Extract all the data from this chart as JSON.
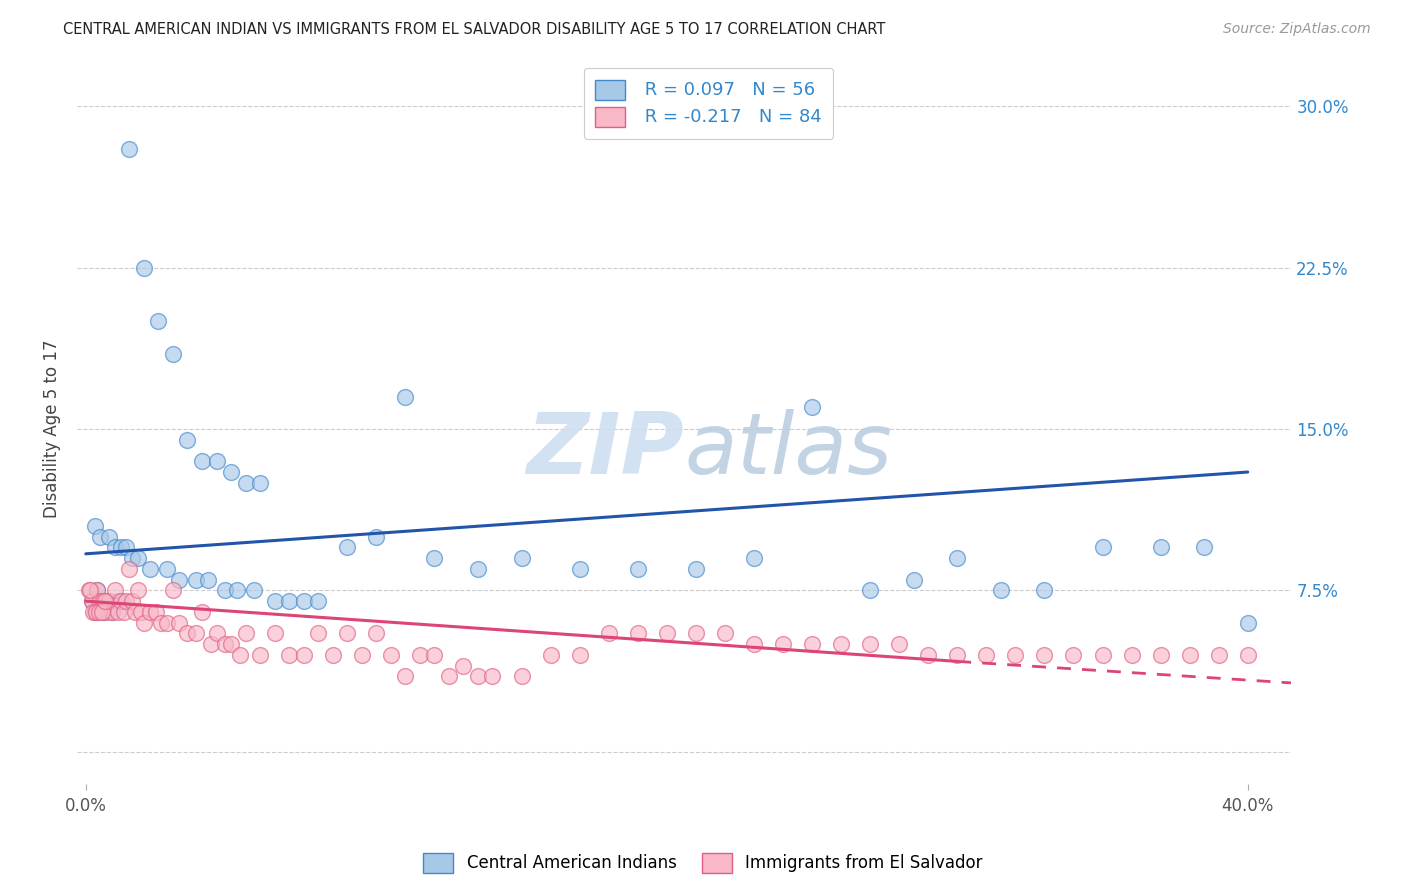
{
  "title": "CENTRAL AMERICAN INDIAN VS IMMIGRANTS FROM EL SALVADOR DISABILITY AGE 5 TO 17 CORRELATION CHART",
  "source": "Source: ZipAtlas.com",
  "ylabel": "Disability Age 5 to 17",
  "legend_label1": "Central American Indians",
  "legend_label2": "Immigrants from El Salvador",
  "legend_R1": "R = 0.097",
  "legend_N1": "N = 56",
  "legend_R2": "R = -0.217",
  "legend_N2": "N = 84",
  "color_blue_fill": "#a8c8e8",
  "color_blue_edge": "#4488cc",
  "color_pink_fill": "#f8b8c8",
  "color_pink_edge": "#e06080",
  "color_blue_line": "#2255aa",
  "color_pink_line": "#dd4477",
  "color_legend_text": "#3388cc",
  "watermark_color": "#ccddf0",
  "blue_scatter_x": [
    1.5,
    2.0,
    2.5,
    3.0,
    3.5,
    4.0,
    4.5,
    5.0,
    5.5,
    6.0,
    0.3,
    0.5,
    0.8,
    1.0,
    1.2,
    1.4,
    1.6,
    1.8,
    2.2,
    2.8,
    3.2,
    3.8,
    4.2,
    4.8,
    5.2,
    5.8,
    6.5,
    7.0,
    7.5,
    8.0,
    9.0,
    10.0,
    11.0,
    12.0,
    13.5,
    15.0,
    17.0,
    19.0,
    21.0,
    23.0,
    25.0,
    27.0,
    28.5,
    30.0,
    31.5,
    33.0,
    35.0,
    37.0,
    38.5,
    40.0,
    0.2,
    0.4,
    0.6,
    0.7,
    0.9,
    1.1
  ],
  "blue_scatter_y": [
    28.0,
    22.5,
    20.0,
    18.5,
    14.5,
    13.5,
    13.5,
    13.0,
    12.5,
    12.5,
    10.5,
    10.0,
    10.0,
    9.5,
    9.5,
    9.5,
    9.0,
    9.0,
    8.5,
    8.5,
    8.0,
    8.0,
    8.0,
    7.5,
    7.5,
    7.5,
    7.0,
    7.0,
    7.0,
    7.0,
    9.5,
    10.0,
    16.5,
    9.0,
    8.5,
    9.0,
    8.5,
    8.5,
    8.5,
    9.0,
    16.0,
    7.5,
    8.0,
    9.0,
    7.5,
    7.5,
    9.5,
    9.5,
    9.5,
    6.0,
    7.0,
    7.5,
    6.5,
    7.0,
    6.5,
    7.0
  ],
  "pink_scatter_x": [
    0.1,
    0.2,
    0.3,
    0.4,
    0.5,
    0.6,
    0.7,
    0.8,
    0.9,
    1.0,
    1.1,
    1.2,
    1.3,
    1.4,
    1.5,
    1.6,
    1.7,
    1.8,
    1.9,
    2.0,
    2.2,
    2.4,
    2.6,
    2.8,
    3.0,
    3.2,
    3.5,
    3.8,
    4.0,
    4.3,
    4.5,
    4.8,
    5.0,
    5.3,
    5.5,
    6.0,
    6.5,
    7.0,
    7.5,
    8.0,
    8.5,
    9.0,
    9.5,
    10.0,
    10.5,
    11.0,
    11.5,
    12.0,
    12.5,
    13.0,
    13.5,
    14.0,
    15.0,
    16.0,
    17.0,
    18.0,
    19.0,
    20.0,
    21.0,
    22.0,
    23.0,
    24.0,
    25.0,
    26.0,
    27.0,
    28.0,
    29.0,
    30.0,
    31.0,
    32.0,
    33.0,
    34.0,
    35.0,
    36.0,
    37.0,
    38.0,
    39.0,
    40.0,
    0.15,
    0.25,
    0.35,
    0.45,
    0.55,
    0.65
  ],
  "pink_scatter_y": [
    7.5,
    7.0,
    6.5,
    7.5,
    7.0,
    7.0,
    6.5,
    7.0,
    6.5,
    7.5,
    6.5,
    7.0,
    6.5,
    7.0,
    8.5,
    7.0,
    6.5,
    7.5,
    6.5,
    6.0,
    6.5,
    6.5,
    6.0,
    6.0,
    7.5,
    6.0,
    5.5,
    5.5,
    6.5,
    5.0,
    5.5,
    5.0,
    5.0,
    4.5,
    5.5,
    4.5,
    5.5,
    4.5,
    4.5,
    5.5,
    4.5,
    5.5,
    4.5,
    5.5,
    4.5,
    3.5,
    4.5,
    4.5,
    3.5,
    4.0,
    3.5,
    3.5,
    3.5,
    4.5,
    4.5,
    5.5,
    5.5,
    5.5,
    5.5,
    5.5,
    5.0,
    5.0,
    5.0,
    5.0,
    5.0,
    5.0,
    4.5,
    4.5,
    4.5,
    4.5,
    4.5,
    4.5,
    4.5,
    4.5,
    4.5,
    4.5,
    4.5,
    4.5,
    7.5,
    6.5,
    6.5,
    6.5,
    6.5,
    7.0
  ],
  "xlim_min": -0.3,
  "xlim_max": 41.5,
  "ylim_min": -1.5,
  "ylim_max": 31.5,
  "xtick_positions": [
    0,
    40
  ],
  "xtick_labels": [
    "0.0%",
    "40.0%"
  ],
  "ytick_positions": [
    0,
    7.5,
    15.0,
    22.5,
    30.0
  ],
  "ytick_labels": [
    "",
    "7.5%",
    "15.0%",
    "22.5%",
    "30.0%"
  ],
  "blue_line_x0": 0.0,
  "blue_line_x1": 40.0,
  "blue_line_y0": 9.2,
  "blue_line_y1": 13.0,
  "pink_solid_x0": 0.0,
  "pink_solid_x1": 30.0,
  "pink_solid_y0": 7.0,
  "pink_solid_y1": 4.2,
  "pink_dash_x0": 30.0,
  "pink_dash_x1": 41.5,
  "pink_dash_y0": 4.2,
  "pink_dash_y1": 3.2
}
